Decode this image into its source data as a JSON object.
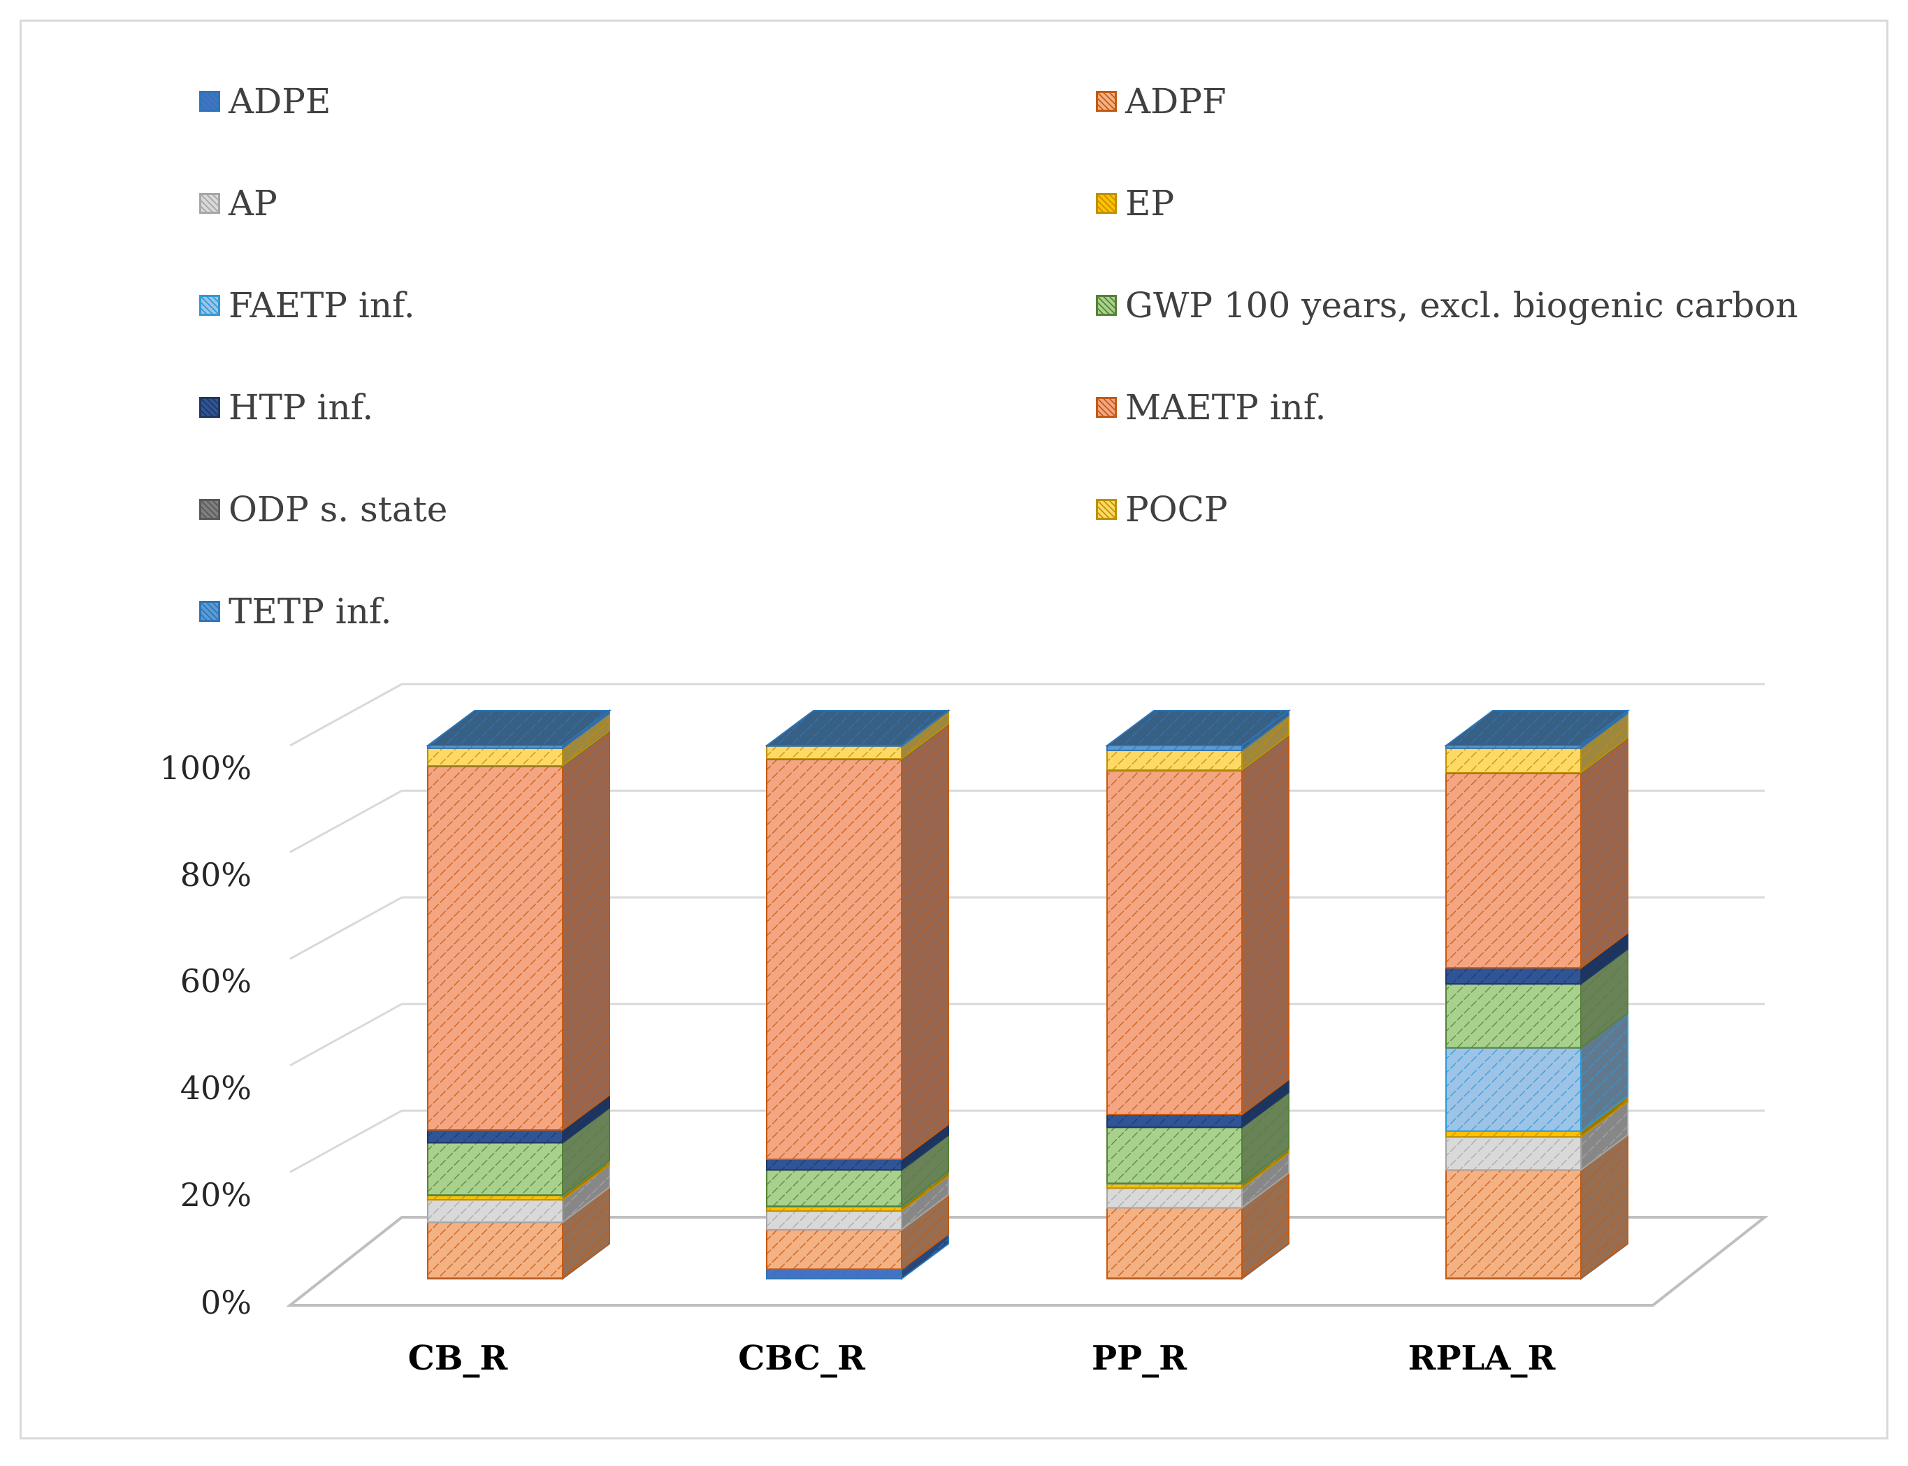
{
  "chart_data": {
    "type": "bar",
    "stacked": true,
    "percent": true,
    "three_d": true,
    "title": "",
    "xlabel": "",
    "ylabel": "",
    "ylim": [
      0,
      100
    ],
    "yticks": [
      "0%",
      "20%",
      "40%",
      "60%",
      "80%",
      "100%"
    ],
    "ytick_values": [
      0,
      20,
      40,
      60,
      80,
      100
    ],
    "categories": [
      "CB_R",
      "CBC_R",
      "PP_R",
      "RPLA_R"
    ],
    "legend_position": "top",
    "series": [
      {
        "name": "ADPE",
        "color": "#4472c4",
        "values": [
          0.1,
          1.8,
          0.1,
          0.1
        ]
      },
      {
        "name": "ADPF",
        "color": "#f4b183",
        "values": [
          10.5,
          7.4,
          13.2,
          20.3
        ]
      },
      {
        "name": "AP",
        "color": "#d9d9d9",
        "values": [
          4.2,
          3.5,
          3.7,
          6.2
        ]
      },
      {
        "name": "EP",
        "color": "#ffc000",
        "values": [
          0.8,
          0.8,
          0.8,
          1.1
        ]
      },
      {
        "name": "FAETP inf.",
        "color": "#9dc3e6",
        "values": [
          0.1,
          0.1,
          0.1,
          15.6
        ]
      },
      {
        "name": "GWP 100 years, excl. biogenic carbon",
        "color": "#a9d18e",
        "values": [
          9.8,
          6.8,
          10.5,
          12.0
        ]
      },
      {
        "name": "HTP inf.",
        "color": "#2f5597",
        "values": [
          2.4,
          2.0,
          2.4,
          3.0
        ]
      },
      {
        "name": "MAETP inf.",
        "color": "#f4a582",
        "values": [
          68.2,
          75.0,
          64.5,
          36.5
        ]
      },
      {
        "name": "ODP s. state",
        "color": "#7f7f7f",
        "values": [
          0.1,
          0.1,
          0.1,
          0.1
        ]
      },
      {
        "name": "POCP",
        "color": "#ffd966",
        "values": [
          3.3,
          2.4,
          3.7,
          4.6
        ]
      },
      {
        "name": "TETP inf.",
        "color": "#5b9bd5",
        "values": [
          0.5,
          0.1,
          0.9,
          0.5
        ]
      }
    ],
    "legend_outline_colors": [
      "#2e75b6",
      "#c55a11",
      "#a6a6a6",
      "#bf9000",
      "#2e9ad6",
      "#548235",
      "#1f3864",
      "#c55a11",
      "#595959",
      "#bf9000",
      "#2e75b6"
    ]
  }
}
